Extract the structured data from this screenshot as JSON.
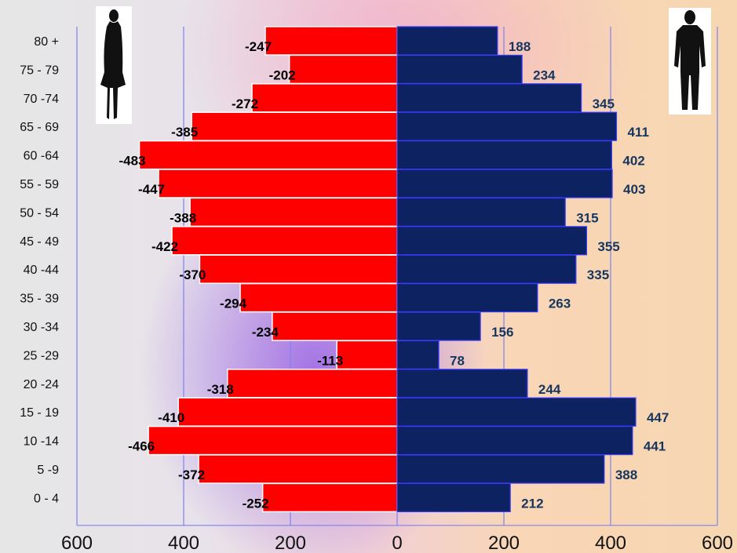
{
  "chart_data": {
    "type": "bar",
    "orientation": "horizontal",
    "subtype": "population-pyramid",
    "categories": [
      "80 +",
      "75 - 79",
      "70 -74",
      "65 - 69",
      "60 -64",
      "55 - 59",
      "50 - 54",
      "45 - 49",
      "40 -44",
      "35 - 39",
      "30 -34",
      "25 -29",
      "20 -24",
      "15 - 19",
      "10 -14",
      "5 -9",
      "0 - 4"
    ],
    "series": [
      {
        "values": [
          -247,
          -202,
          -272,
          -385,
          -483,
          -447,
          -388,
          -422,
          -370,
          -294,
          -234,
          -113,
          -318,
          -410,
          -466,
          -372,
          -252
        ],
        "color": "#ff0000"
      },
      {
        "values": [
          188,
          234,
          345,
          411,
          402,
          403,
          315,
          355,
          335,
          263,
          156,
          78,
          244,
          447,
          441,
          388,
          212
        ],
        "color": "#0d2260"
      }
    ],
    "xlim": [
      -600,
      600
    ],
    "xticks": [
      -600,
      -400,
      -200,
      0,
      200,
      400,
      600
    ],
    "xtick_labels": [
      "600",
      "400",
      "200",
      "0",
      "200",
      "400",
      "600"
    ],
    "grid": true,
    "data_labels": true,
    "grid_color": "#8080ee"
  },
  "icons": {
    "left": "woman-silhouette-icon",
    "right": "man-silhouette-icon"
  }
}
